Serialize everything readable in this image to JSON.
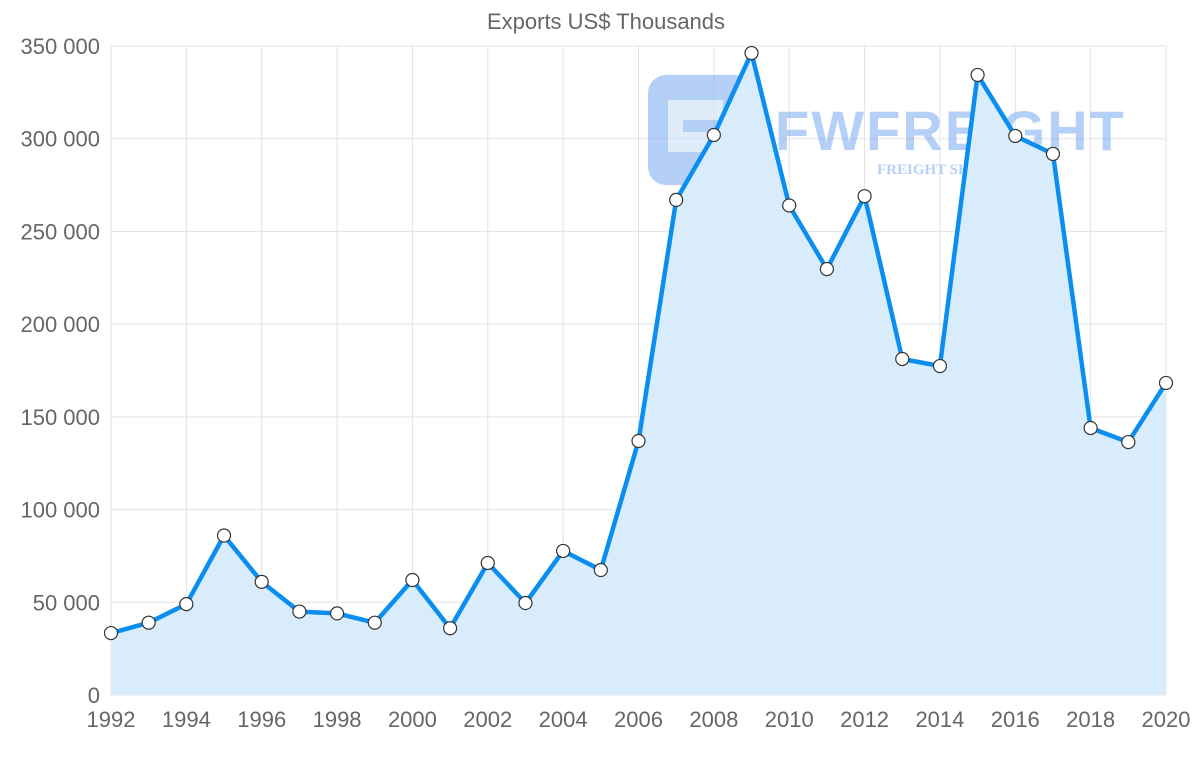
{
  "chart_data": {
    "type": "area",
    "title": "Exports US$ Thousands",
    "xlabel": "",
    "ylabel": "",
    "x": [
      1992,
      1993,
      1994,
      1995,
      1996,
      1997,
      1998,
      1999,
      2000,
      2001,
      2002,
      2003,
      2004,
      2005,
      2006,
      2007,
      2008,
      2009,
      2010,
      2011,
      2012,
      2013,
      2014,
      2015,
      2016,
      2017,
      2018,
      2019,
      2020
    ],
    "series": [
      {
        "name": "Exports US$ Thousands",
        "values": [
          33400,
          39000,
          49000,
          86000,
          61000,
          45000,
          44000,
          39000,
          62000,
          36000,
          71200,
          49600,
          77700,
          67400,
          137000,
          267000,
          302000,
          346200,
          264000,
          229700,
          269000,
          181200,
          177400,
          334400,
          301500,
          291800,
          144000,
          136400,
          168300
        ]
      }
    ],
    "xlim": [
      1992,
      2020
    ],
    "ylim": [
      0,
      350000
    ],
    "x_ticks": [
      "1992",
      "1994",
      "1996",
      "1998",
      "2000",
      "2002",
      "2004",
      "2006",
      "2008",
      "2010",
      "2012",
      "2014",
      "2016",
      "2018",
      "2020"
    ],
    "y_ticks": [
      "0",
      "50 000",
      "100 000",
      "150 000",
      "200 000",
      "250 000",
      "300 000",
      "350 000"
    ],
    "grid": true,
    "legend": "none",
    "colors": {
      "line": "#0a8ef0",
      "fill": "#d9ecfc",
      "grid": "#e3e3e3",
      "watermark": "#7aaaf0"
    },
    "watermark": {
      "brand": "FWFREIGHT",
      "tagline": "FREIGHT SHIPPING"
    }
  }
}
